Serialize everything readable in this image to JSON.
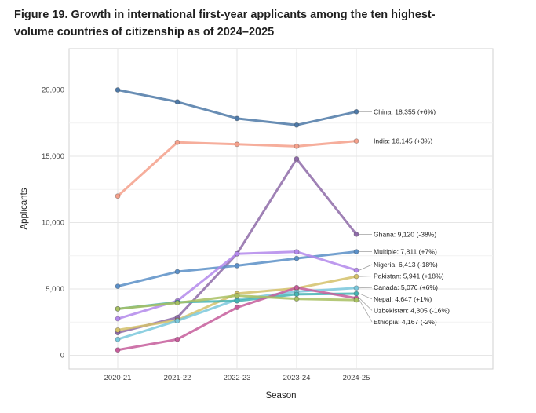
{
  "figure": {
    "title": "Figure 19. Growth in international first-year applicants among the ten highest-volume countries of citizenship as of 2024–2025"
  },
  "chart_data": {
    "type": "line",
    "title": "Figure 19. Growth in international first-year applicants among the ten highest-volume countries of citizenship as of 2024–2025",
    "xlabel": "Season",
    "ylabel": "Applicants",
    "categories": [
      "2020-21",
      "2021-22",
      "2022-23",
      "2023-24",
      "2024-25"
    ],
    "ylim": [
      -600,
      23000
    ],
    "yticks": [
      0,
      5000,
      10000,
      15000,
      20000
    ],
    "ytick_labels": [
      "0",
      "5,000",
      "10,000",
      "15,000",
      "20,000"
    ],
    "grid": true,
    "series": [
      {
        "name": "China",
        "label": "China: 18,355 (+6%)",
        "color": "#4e79a7",
        "values": [
          20000,
          19100,
          17850,
          17350,
          18355
        ]
      },
      {
        "name": "India",
        "label": "India: 16,145 (+3%)",
        "color": "#f4a08b",
        "values": [
          12000,
          16050,
          15900,
          15750,
          16145
        ]
      },
      {
        "name": "Ghana",
        "label": "Ghana: 9,120 (-38%)",
        "color": "#8e6ba8",
        "values": [
          1700,
          2850,
          7650,
          14800,
          9120
        ]
      },
      {
        "name": "Multiple",
        "label": "Multiple: 7,811 (+7%)",
        "color": "#5b8fc7",
        "values": [
          5200,
          6300,
          6750,
          7300,
          7811
        ]
      },
      {
        "name": "Nigeria",
        "label": "Nigeria: 6,413 (-18%)",
        "color": "#b388eb",
        "values": [
          2750,
          4100,
          7650,
          7800,
          6413
        ]
      },
      {
        "name": "Pakistan",
        "label": "Pakistan: 5,941 (+18%)",
        "color": "#d4c16a",
        "values": [
          1900,
          2650,
          4650,
          5050,
          5941
        ]
      },
      {
        "name": "Canada",
        "label": "Canada: 5,076 (+6%)",
        "color": "#7ac8dc",
        "values": [
          1200,
          2600,
          4200,
          4800,
          5076
        ]
      },
      {
        "name": "Nepal",
        "label": "Nepal: 4,647 (+1%)",
        "color": "#45b3b3",
        "values": [
          3500,
          4000,
          4100,
          4600,
          4647
        ]
      },
      {
        "name": "Uzbekistan",
        "label": "Uzbekistan: 4,305 (-16%)",
        "color": "#c65d9b",
        "values": [
          400,
          1200,
          3600,
          5100,
          4305
        ]
      },
      {
        "name": "Ethiopia",
        "label": "Ethiopia: 4,167 (-2%)",
        "color": "#a8c062",
        "values": [
          3500,
          3950,
          4500,
          4250,
          4167
        ]
      }
    ]
  }
}
